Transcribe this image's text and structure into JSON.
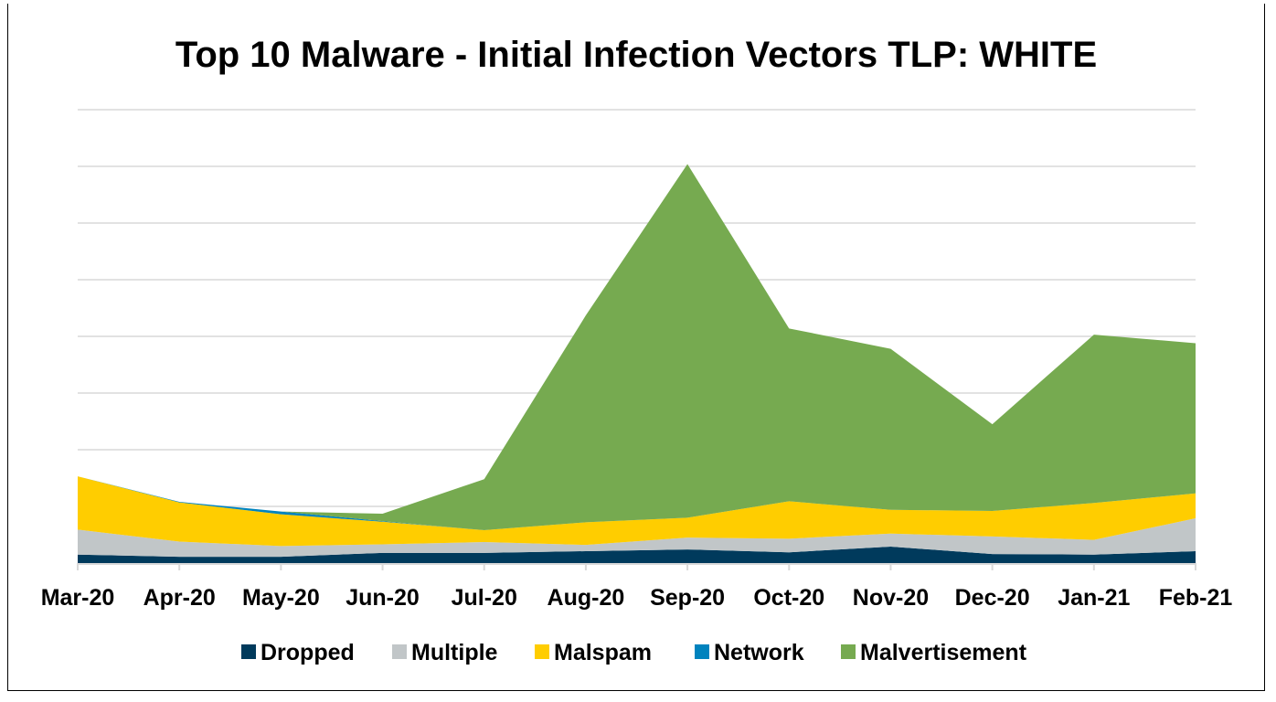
{
  "chart_data": {
    "type": "area",
    "stacked": true,
    "title": "Top 10 Malware - Initial Infection Vectors TLP: WHITE",
    "xlabel": "",
    "ylabel": "",
    "categories": [
      "Mar-20",
      "Apr-20",
      "May-20",
      "Jun-20",
      "Jul-20",
      "Aug-20",
      "Sep-20",
      "Oct-20",
      "Nov-20",
      "Dec-20",
      "Jan-21",
      "Feb-21"
    ],
    "ylim": [
      0,
      8
    ],
    "y_tick_labels_shown": false,
    "grid": true,
    "legend_position": "bottom",
    "series": [
      {
        "name": "Dropped",
        "color": "#003a5c",
        "values": [
          0.15,
          0.11,
          0.11,
          0.18,
          0.18,
          0.21,
          0.24,
          0.19,
          0.29,
          0.16,
          0.15,
          0.21
        ]
      },
      {
        "name": "Multiple",
        "color": "#c1c6c8",
        "values": [
          0.44,
          0.27,
          0.19,
          0.15,
          0.19,
          0.11,
          0.21,
          0.24,
          0.23,
          0.31,
          0.26,
          0.58
        ]
      },
      {
        "name": "Malspam",
        "color": "#ffcd00",
        "values": [
          0.94,
          0.69,
          0.56,
          0.4,
          0.21,
          0.4,
          0.35,
          0.66,
          0.42,
          0.45,
          0.65,
          0.44
        ]
      },
      {
        "name": "Network",
        "color": "#0083be",
        "values": [
          0,
          0.01,
          0.05,
          0.01,
          0,
          0,
          0,
          0,
          0,
          0,
          0,
          0
        ]
      },
      {
        "name": "Malvertisement",
        "color": "#76aa50",
        "values": [
          0,
          0,
          0,
          0.13,
          0.9,
          3.65,
          6.24,
          3.05,
          2.84,
          1.53,
          2.97,
          2.65
        ]
      }
    ]
  }
}
